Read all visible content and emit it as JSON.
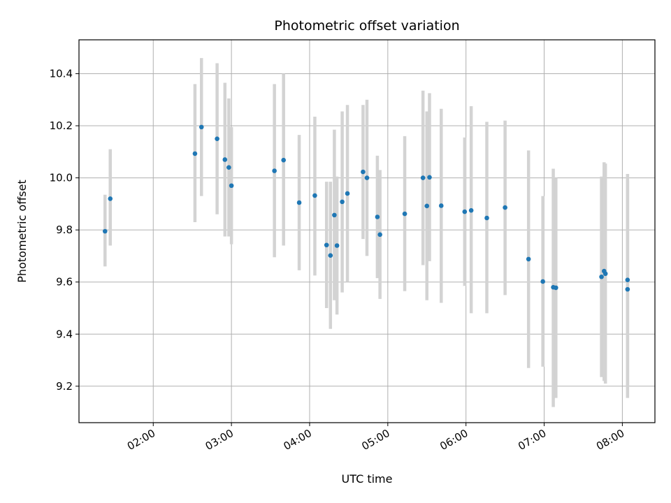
{
  "chart_data": {
    "type": "scatter",
    "title": "Photometric offset variation",
    "xlabel": "UTC time",
    "ylabel": "Photometric offset",
    "xlim": [
      "01:03",
      "08:25"
    ],
    "ylim": [
      9.06,
      10.53
    ],
    "xticks": [
      "02:00",
      "03:00",
      "04:00",
      "05:00",
      "06:00",
      "07:00",
      "08:00"
    ],
    "yticks": [
      9.2,
      9.4,
      9.6,
      9.8,
      10.0,
      10.2,
      10.4
    ],
    "grid": true,
    "point_color": "#1f77b4",
    "errorbar_color": "#d3d3d3",
    "points": [
      {
        "x": "01:23",
        "y": 9.795,
        "lo": 9.66,
        "hi": 9.935
      },
      {
        "x": "01:27",
        "y": 9.92,
        "lo": 9.74,
        "hi": 10.11
      },
      {
        "x": "02:32",
        "y": 10.093,
        "lo": 9.83,
        "hi": 10.36
      },
      {
        "x": "02:37",
        "y": 10.195,
        "lo": 9.93,
        "hi": 10.46
      },
      {
        "x": "02:49",
        "y": 10.15,
        "lo": 9.86,
        "hi": 10.44
      },
      {
        "x": "02:55",
        "y": 10.07,
        "lo": 9.775,
        "hi": 10.365
      },
      {
        "x": "02:58",
        "y": 10.04,
        "lo": 9.775,
        "hi": 10.305
      },
      {
        "x": "03:00",
        "y": 9.97,
        "lo": 9.745,
        "hi": 10.195
      },
      {
        "x": "03:33",
        "y": 10.027,
        "lo": 9.695,
        "hi": 10.36
      },
      {
        "x": "03:40",
        "y": 10.068,
        "lo": 9.74,
        "hi": 10.4
      },
      {
        "x": "03:52",
        "y": 9.905,
        "lo": 9.645,
        "hi": 10.165
      },
      {
        "x": "04:04",
        "y": 9.932,
        "lo": 9.625,
        "hi": 10.235
      },
      {
        "x": "04:13",
        "y": 9.742,
        "lo": 9.5,
        "hi": 9.985
      },
      {
        "x": "04:16",
        "y": 9.702,
        "lo": 9.42,
        "hi": 9.985
      },
      {
        "x": "04:19",
        "y": 9.857,
        "lo": 9.53,
        "hi": 10.185
      },
      {
        "x": "04:21",
        "y": 9.74,
        "lo": 9.475,
        "hi": 10.005
      },
      {
        "x": "04:25",
        "y": 9.908,
        "lo": 9.56,
        "hi": 10.255
      },
      {
        "x": "04:29",
        "y": 9.94,
        "lo": 9.6,
        "hi": 10.28
      },
      {
        "x": "04:41",
        "y": 10.023,
        "lo": 9.765,
        "hi": 10.28
      },
      {
        "x": "04:44",
        "y": 10.0,
        "lo": 9.7,
        "hi": 10.3
      },
      {
        "x": "04:52",
        "y": 9.85,
        "lo": 9.615,
        "hi": 10.085
      },
      {
        "x": "04:54",
        "y": 9.782,
        "lo": 9.535,
        "hi": 10.03
      },
      {
        "x": "05:13",
        "y": 9.862,
        "lo": 9.565,
        "hi": 10.16
      },
      {
        "x": "05:27",
        "y": 10.0,
        "lo": 9.665,
        "hi": 10.335
      },
      {
        "x": "05:30",
        "y": 9.892,
        "lo": 9.53,
        "hi": 10.255
      },
      {
        "x": "05:32",
        "y": 10.002,
        "lo": 9.68,
        "hi": 10.325
      },
      {
        "x": "05:41",
        "y": 9.893,
        "lo": 9.52,
        "hi": 10.265
      },
      {
        "x": "05:59",
        "y": 9.87,
        "lo": 9.585,
        "hi": 10.155
      },
      {
        "x": "06:04",
        "y": 9.875,
        "lo": 9.48,
        "hi": 10.275
      },
      {
        "x": "06:16",
        "y": 9.846,
        "lo": 9.48,
        "hi": 10.215
      },
      {
        "x": "06:30",
        "y": 9.886,
        "lo": 9.55,
        "hi": 10.22
      },
      {
        "x": "06:48",
        "y": 9.688,
        "lo": 9.27,
        "hi": 10.105
      },
      {
        "x": "06:59",
        "y": 9.602,
        "lo": 9.275,
        "hi": 9.93
      },
      {
        "x": "07:07",
        "y": 9.58,
        "lo": 9.12,
        "hi": 10.035
      },
      {
        "x": "07:09",
        "y": 9.578,
        "lo": 9.155,
        "hi": 10.0
      },
      {
        "x": "07:44",
        "y": 9.62,
        "lo": 9.235,
        "hi": 10.005
      },
      {
        "x": "07:46",
        "y": 9.642,
        "lo": 9.22,
        "hi": 10.06
      },
      {
        "x": "07:47",
        "y": 9.632,
        "lo": 9.21,
        "hi": 10.055
      },
      {
        "x": "08:04",
        "y": 9.608,
        "lo": 9.2,
        "hi": 10.015
      },
      {
        "x": "08:04",
        "y": 9.572,
        "lo": 9.155,
        "hi": 9.99
      }
    ]
  }
}
